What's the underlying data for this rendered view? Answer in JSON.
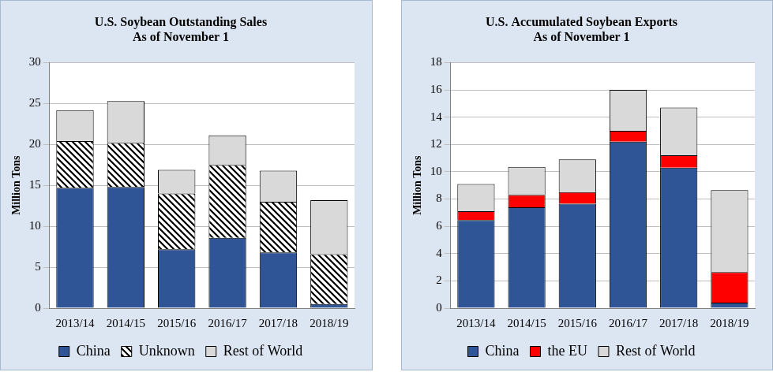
{
  "chart_data": [
    {
      "type": "bar",
      "title": "U.S. Soybean Outstanding Sales",
      "subtitle": "As of November 1",
      "y_label": "Million Tons",
      "categories": [
        "2013/14",
        "2014/15",
        "2015/16",
        "2016/17",
        "2017/18",
        "2018/19"
      ],
      "series": [
        {
          "name": "China",
          "color": "#2f5597",
          "values": [
            14.7,
            14.8,
            7.2,
            8.6,
            6.8,
            0.5
          ]
        },
        {
          "name": "Unknown",
          "color": "#000000",
          "line_style": "diagonal",
          "values": [
            5.7,
            5.4,
            6.8,
            8.9,
            6.2,
            6.1
          ]
        },
        {
          "name": "Rest of World",
          "color": "#d9d9d9",
          "values": [
            3.8,
            5.1,
            2.9,
            3.6,
            3.8,
            6.6
          ]
        }
      ],
      "ylim": [
        0,
        30
      ],
      "yticks": [
        0,
        5,
        10,
        15,
        20,
        25,
        30
      ],
      "stacked": true,
      "grid": true,
      "legend": "bottom"
    },
    {
      "type": "bar",
      "title": "U.S. Accumulated Soybean Exports",
      "subtitle": "As of November 1",
      "y_label": "Million Tons",
      "categories": [
        "2013/14",
        "2014/15",
        "2015/16",
        "2016/17",
        "2017/18",
        "2018/19"
      ],
      "series": [
        {
          "name": "China",
          "color": "#2f5597",
          "values": [
            6.45,
            7.4,
            7.65,
            12.2,
            10.3,
            0.4
          ]
        },
        {
          "name": "the EU",
          "color": "#ff0000",
          "values": [
            0.65,
            0.9,
            0.85,
            0.8,
            0.9,
            2.25
          ]
        },
        {
          "name": "Rest of World",
          "color": "#d9d9d9",
          "values": [
            2.0,
            2.05,
            2.4,
            3.0,
            3.5,
            6.0
          ]
        }
      ],
      "ylim": [
        0,
        18
      ],
      "yticks": [
        0,
        2,
        4,
        6,
        8,
        10,
        12,
        14,
        16,
        18
      ],
      "stacked": true,
      "grid": true,
      "legend": "bottom"
    }
  ]
}
